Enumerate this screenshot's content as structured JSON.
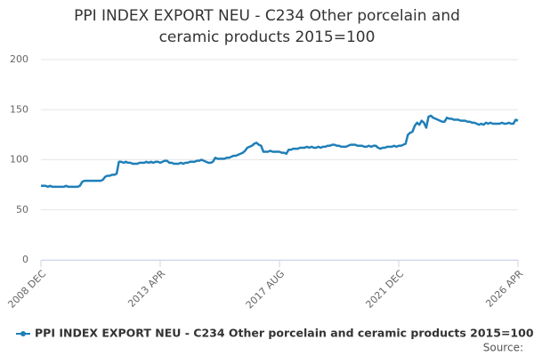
{
  "chart_data": {
    "type": "line",
    "title": "PPI INDEX EXPORT NEU - C234 Other porcelain and ceramic products 2015=100",
    "source": "Source:",
    "categories": [
      "2008 DEC",
      null,
      null,
      null,
      null,
      null,
      null,
      null,
      null,
      null,
      null,
      null,
      null,
      null,
      null,
      null,
      null,
      null,
      null,
      null,
      null,
      null,
      null,
      null,
      null,
      null,
      null,
      null,
      null,
      null,
      null,
      null,
      null,
      null,
      null,
      null,
      null,
      null,
      null,
      null,
      null,
      null,
      null,
      null,
      null,
      null,
      null,
      null,
      null,
      null,
      null,
      null,
      "2013 APR",
      null,
      null,
      null,
      null,
      null,
      null,
      null,
      null,
      null,
      null,
      null,
      null,
      null,
      null,
      null,
      null,
      null,
      null,
      null,
      null,
      null,
      null,
      null,
      null,
      null,
      null,
      null,
      null,
      null,
      null,
      null,
      null,
      null,
      null,
      null,
      null,
      null,
      null,
      null,
      null,
      null,
      null,
      null,
      null,
      null,
      null,
      null,
      null,
      null,
      null,
      null,
      "2017 AUG",
      null,
      null,
      null,
      null,
      null,
      null,
      null,
      null,
      null,
      null,
      null,
      null,
      null,
      null,
      null,
      null,
      null,
      null,
      null,
      null,
      null,
      null,
      null,
      null,
      null,
      null,
      null,
      null,
      null,
      null,
      null,
      null,
      null,
      null,
      null,
      null,
      null,
      null,
      null,
      null,
      null,
      null,
      null,
      null,
      null,
      null,
      null,
      null,
      null,
      null,
      null,
      "2021 DEC",
      null,
      null,
      null,
      null,
      null,
      null,
      null,
      null,
      null,
      null,
      null,
      null,
      null,
      null,
      null,
      null,
      null,
      null,
      null,
      null,
      null,
      null,
      null,
      null,
      null,
      null,
      null,
      null,
      null,
      null,
      null,
      null,
      null,
      null,
      null,
      null,
      null,
      null,
      null,
      null,
      null,
      null,
      null,
      null,
      null,
      null,
      null,
      null,
      null,
      null,
      null,
      "2026 APR"
    ],
    "series": [
      {
        "name": "PPI INDEX EXPORT NEU - C234 Other porcelain and ceramic products 2015=100",
        "color": "#1f7fb8",
        "values": [
          74,
          74,
          74,
          73,
          74,
          73,
          73,
          73,
          73,
          73,
          73,
          74,
          73,
          73,
          73,
          73,
          73,
          74,
          78,
          79,
          79,
          79,
          79,
          79,
          79,
          79,
          79,
          80,
          83,
          84,
          84,
          85,
          85,
          86,
          98,
          98,
          97,
          98,
          97,
          97,
          96,
          96,
          96,
          97,
          97,
          97,
          98,
          97,
          98,
          97,
          98,
          98,
          97,
          98,
          99,
          99,
          97,
          97,
          96,
          96,
          96,
          97,
          96,
          97,
          97,
          98,
          98,
          98,
          99,
          99,
          100,
          99,
          98,
          97,
          97,
          98,
          102,
          101,
          101,
          101,
          101,
          102,
          102,
          103,
          104,
          104,
          105,
          106,
          107,
          109,
          112,
          113,
          114,
          116,
          117,
          115,
          114,
          108,
          108,
          108,
          109,
          108,
          108,
          108,
          108,
          107,
          107,
          106,
          110,
          110,
          111,
          111,
          111,
          112,
          112,
          112,
          113,
          112,
          113,
          112,
          112,
          113,
          112,
          113,
          113,
          114,
          114,
          115,
          115,
          114,
          114,
          113,
          113,
          113,
          114,
          115,
          115,
          115,
          114,
          114,
          114,
          113,
          113,
          114,
          113,
          114,
          114,
          112,
          111,
          112,
          112,
          113,
          113,
          113,
          114,
          113,
          114,
          114,
          115,
          116,
          125,
          127,
          128,
          134,
          137,
          135,
          139,
          137,
          132,
          143,
          144,
          142,
          141,
          140,
          139,
          138,
          138,
          142,
          141,
          141,
          140,
          140,
          140,
          139,
          139,
          139,
          138,
          138,
          137,
          137,
          136,
          135,
          136,
          135,
          137,
          136,
          137,
          136,
          136,
          136,
          136,
          137,
          136,
          136,
          137,
          136,
          136,
          140,
          139
        ]
      }
    ],
    "ylim": [
      0,
      200
    ],
    "yticks": [
      0,
      50,
      100,
      150,
      200
    ],
    "grid": true
  }
}
